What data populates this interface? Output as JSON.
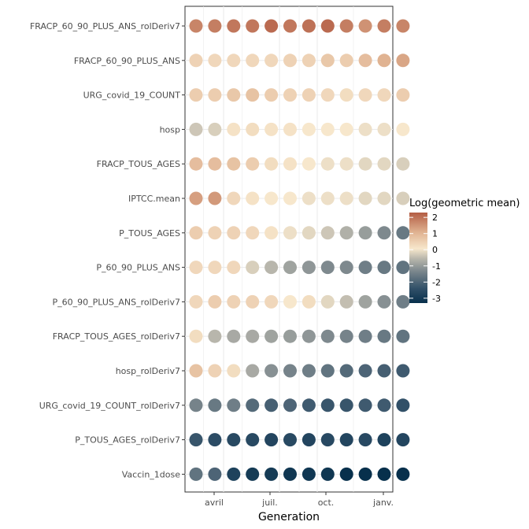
{
  "chart_data": {
    "type": "dot-matrix",
    "xlabel": "Generation",
    "x_ticks": [
      "avril",
      "juil.",
      "oct.",
      "janv."
    ],
    "columns": 12,
    "legend": {
      "title": "Log(geometric mean)",
      "ticks": [
        2,
        1,
        0,
        -1,
        -2,
        -3
      ],
      "range": [
        -3.3,
        2.3
      ],
      "colors": {
        "low": "#07304c",
        "mid": "#f7e7cc",
        "high": "#b35d44",
        "neutral": "#a9a9a3"
      }
    },
    "rows": [
      {
        "label": "FRACP_60_90_PLUS_ANS_rolDeriv7",
        "values": [
          1.7,
          1.8,
          1.9,
          1.9,
          2.1,
          1.9,
          2.0,
          2.1,
          1.8,
          1.5,
          1.8,
          1.7
        ]
      },
      {
        "label": "FRACP_60_90_PLUS_ANS",
        "values": [
          0.4,
          0.3,
          0.3,
          0.3,
          0.3,
          0.4,
          0.4,
          0.6,
          0.5,
          0.8,
          1.0,
          1.2
        ]
      },
      {
        "label": "URG_covid_19_COUNT",
        "values": [
          0.5,
          0.5,
          0.6,
          0.7,
          0.5,
          0.4,
          0.4,
          0.3,
          0.2,
          0.3,
          0.3,
          0.5
        ]
      },
      {
        "label": "hosp",
        "values": [
          -0.4,
          -0.3,
          0.1,
          0.2,
          0.1,
          0.1,
          0.0,
          0.0,
          0.0,
          -0.1,
          -0.1,
          0.0
        ]
      },
      {
        "label": "FRACP_TOUS_AGES",
        "values": [
          0.8,
          0.8,
          0.7,
          0.5,
          0.2,
          0.1,
          0.0,
          -0.1,
          -0.1,
          -0.2,
          -0.2,
          -0.3
        ]
      },
      {
        "label": "IPTCC.mean",
        "values": [
          1.3,
          1.4,
          0.3,
          0.1,
          0.0,
          0.0,
          -0.1,
          -0.1,
          -0.1,
          -0.2,
          -0.2,
          -0.3
        ]
      },
      {
        "label": "P_TOUS_AGES",
        "values": [
          0.5,
          0.4,
          0.4,
          0.3,
          0.1,
          -0.1,
          -0.2,
          -0.4,
          -0.7,
          -1.0,
          -1.3,
          -1.6
        ]
      },
      {
        "label": "P_60_90_PLUS_ANS",
        "values": [
          0.3,
          0.3,
          0.3,
          -0.3,
          -0.6,
          -0.9,
          -1.1,
          -1.3,
          -1.3,
          -1.5,
          -1.6,
          -1.7
        ]
      },
      {
        "label": "P_60_90_PLUS_ANS_rolDeriv7",
        "values": [
          0.3,
          0.5,
          0.4,
          0.4,
          0.3,
          0.0,
          0.2,
          -0.2,
          -0.5,
          -0.9,
          -1.2,
          -1.5
        ]
      },
      {
        "label": "FRACP_TOUS_AGES_rolDeriv7",
        "values": [
          0.2,
          -0.6,
          -0.8,
          -0.8,
          -0.9,
          -1.0,
          -1.1,
          -1.3,
          -1.4,
          -1.5,
          -1.6,
          -1.7
        ]
      },
      {
        "label": "hosp_rolDeriv7",
        "values": [
          0.7,
          0.4,
          0.2,
          -0.8,
          -1.2,
          -1.4,
          -1.5,
          -1.7,
          -1.9,
          -2.0,
          -2.1,
          -2.2
        ]
      },
      {
        "label": "URG_covid_19_COUNT_rolDeriv7",
        "values": [
          -1.4,
          -1.6,
          -1.5,
          -1.9,
          -2.1,
          -2.0,
          -2.2,
          -2.3,
          -2.3,
          -2.2,
          -2.2,
          -2.4
        ]
      },
      {
        "label": "P_TOUS_AGES_rolDeriv7",
        "values": [
          -2.3,
          -2.5,
          -2.6,
          -2.6,
          -2.7,
          -2.6,
          -2.7,
          -2.6,
          -2.7,
          -2.6,
          -2.8,
          -2.7
        ]
      },
      {
        "label": "Vaccin_1dose",
        "values": [
          -1.7,
          -2.0,
          -2.8,
          -3.0,
          -3.0,
          -3.1,
          -3.1,
          -3.1,
          -3.3,
          -3.3,
          -3.3,
          -3.3
        ]
      }
    ]
  }
}
